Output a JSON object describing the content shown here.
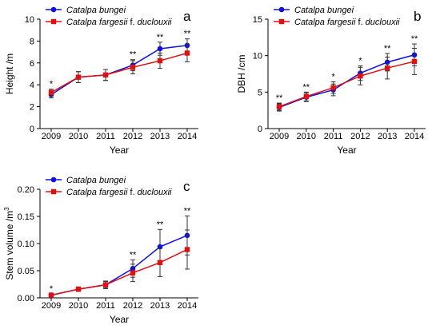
{
  "colors": {
    "bungei": "#1010e0",
    "fargesii": "#e01010"
  },
  "chart_data": [
    {
      "panel": "a",
      "type": "line",
      "x": [
        "2009",
        "2010",
        "2011",
        "2012",
        "2013",
        "2014"
      ],
      "xlabel": "Year",
      "ylabel": "Height /m",
      "ylim": [
        0,
        10
      ],
      "yticks": [
        "0",
        "2",
        "4",
        "6",
        "8",
        "10"
      ],
      "legend": "top-left",
      "series": [
        {
          "name": "Catalpa bungei",
          "marker": "circle",
          "values": [
            3.1,
            4.7,
            4.9,
            5.8,
            7.3,
            7.6
          ],
          "errors": [
            0.3,
            0.5,
            0.5,
            0.5,
            0.6,
            0.6
          ]
        },
        {
          "name": "Catalpa fargesii f. duclouxii",
          "marker": "square",
          "values": [
            3.3,
            4.7,
            4.9,
            5.6,
            6.2,
            6.9
          ],
          "errors": [
            0.3,
            0.5,
            0.5,
            0.6,
            0.7,
            0.8
          ]
        }
      ],
      "significance": [
        "*",
        "",
        "",
        "**",
        "**",
        "**"
      ]
    },
    {
      "panel": "b",
      "type": "line",
      "x": [
        "2009",
        "2010",
        "2011",
        "2012",
        "2013",
        "2014"
      ],
      "xlabel": "Year",
      "ylabel": "DBH /cm",
      "ylim": [
        0,
        15
      ],
      "yticks": [
        "0",
        "5",
        "10",
        "15"
      ],
      "legend": "top-left",
      "series": [
        {
          "name": "Catalpa bungei",
          "marker": "circle",
          "values": [
            2.9,
            4.3,
            5.3,
            7.6,
            9.1,
            10.1
          ],
          "errors": [
            0.5,
            0.6,
            0.8,
            1.0,
            1.2,
            1.5
          ]
        },
        {
          "name": "Catalpa fargesii f. duclouxii",
          "marker": "square",
          "values": [
            3.0,
            4.4,
            5.6,
            7.2,
            8.3,
            9.2
          ],
          "errors": [
            0.5,
            0.6,
            0.8,
            1.2,
            1.5,
            1.8
          ]
        }
      ],
      "significance": [
        "**",
        "**",
        "*",
        "*",
        "**",
        "**"
      ]
    },
    {
      "panel": "c",
      "type": "line",
      "x": [
        "2009",
        "2010",
        "2011",
        "2012",
        "2013",
        "2014"
      ],
      "xlabel": "Year",
      "ylabel": "Stem volume /m",
      "ylabel_sup": "3",
      "ylim": [
        0,
        0.2
      ],
      "yticks": [
        "0.00",
        "0.05",
        "0.10",
        "0.15",
        "0.20"
      ],
      "legend": "top-left",
      "series": [
        {
          "name": "Catalpa bungei",
          "marker": "circle",
          "values": [
            0.005,
            0.016,
            0.024,
            0.054,
            0.094,
            0.115
          ],
          "errors": [
            0.002,
            0.004,
            0.006,
            0.016,
            0.032,
            0.036
          ]
        },
        {
          "name": "Catalpa fargesii f. duclouxii",
          "marker": "square",
          "values": [
            0.005,
            0.016,
            0.024,
            0.046,
            0.065,
            0.089
          ],
          "errors": [
            0.002,
            0.004,
            0.007,
            0.016,
            0.026,
            0.036
          ]
        }
      ],
      "significance": [
        "*",
        "",
        "",
        "**",
        "**",
        "**"
      ]
    }
  ]
}
